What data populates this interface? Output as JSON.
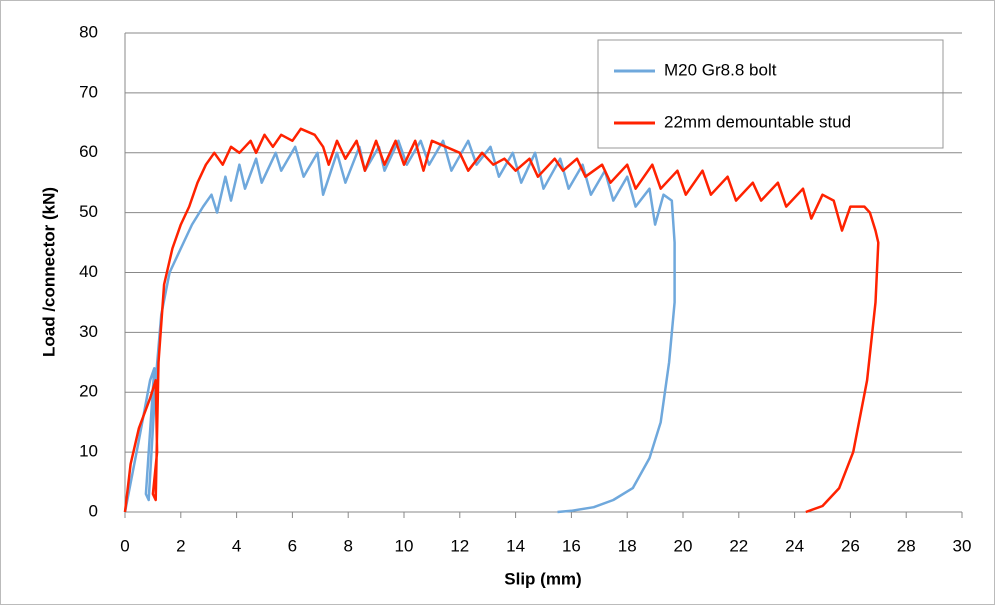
{
  "chart_data": {
    "type": "line",
    "xlabel": "Slip (mm)",
    "ylabel": "Load /connector (kN)",
    "xlim": [
      0,
      30
    ],
    "xticks": [
      0,
      2,
      4,
      6,
      8,
      10,
      12,
      14,
      16,
      18,
      20,
      22,
      24,
      26,
      28,
      30
    ],
    "ylim": [
      0,
      80
    ],
    "yticks": [
      0,
      10,
      20,
      30,
      40,
      50,
      60,
      70,
      80
    ],
    "grid": true,
    "legend": "upper right",
    "series": [
      {
        "name": "M20 Gr8.8 bolt",
        "color": "#6fa8dc",
        "x": [
          0,
          0.5,
          0.9,
          1.05,
          0.75,
          0.85,
          1.1,
          1.3,
          1.6,
          2.0,
          2.4,
          2.8,
          3.1,
          3.3,
          3.6,
          3.8,
          4.1,
          4.3,
          4.7,
          4.9,
          5.4,
          5.6,
          6.1,
          6.4,
          6.9,
          7.1,
          7.6,
          7.9,
          8.4,
          8.6,
          9.1,
          9.3,
          9.8,
          10.1,
          10.6,
          10.9,
          11.4,
          11.7,
          12.3,
          12.6,
          13.1,
          13.4,
          13.9,
          14.2,
          14.7,
          15.0,
          15.6,
          15.9,
          16.4,
          16.7,
          17.2,
          17.5,
          18.0,
          18.3,
          18.8,
          19.0,
          19.3,
          19.6,
          19.7,
          19.7,
          19.5,
          19.2,
          18.8,
          18.2,
          17.5,
          16.8,
          16.0,
          15.5
        ],
        "values": [
          0,
          12,
          22,
          24,
          3,
          2,
          22,
          33,
          40,
          44,
          48,
          51,
          53,
          50,
          56,
          52,
          58,
          54,
          59,
          55,
          60,
          57,
          61,
          56,
          60,
          53,
          60,
          55,
          61,
          57,
          61,
          57,
          62,
          58,
          62,
          58,
          62,
          57,
          62,
          58,
          61,
          56,
          60,
          55,
          60,
          54,
          59,
          54,
          58,
          53,
          57,
          52,
          56,
          51,
          54,
          48,
          53,
          52,
          45,
          35,
          25,
          15,
          9,
          4,
          2,
          0.8,
          0.2,
          0
        ]
      },
      {
        "name": "22mm demountable stud",
        "color": "#ff2200",
        "x": [
          0,
          0.2,
          0.5,
          0.9,
          1.1,
          1.15,
          1.0,
          1.1,
          1.2,
          1.4,
          1.7,
          2.0,
          2.3,
          2.6,
          2.9,
          3.2,
          3.5,
          3.8,
          4.1,
          4.5,
          4.7,
          5.0,
          5.3,
          5.6,
          6.0,
          6.3,
          6.8,
          7.1,
          7.3,
          7.6,
          7.9,
          8.3,
          8.6,
          9.0,
          9.3,
          9.7,
          10.0,
          10.4,
          10.7,
          11.0,
          11.5,
          12.0,
          12.3,
          12.8,
          13.2,
          13.6,
          14.0,
          14.5,
          14.8,
          15.4,
          15.7,
          16.2,
          16.5,
          17.1,
          17.4,
          18.0,
          18.3,
          18.9,
          19.2,
          19.8,
          20.1,
          20.7,
          21.0,
          21.6,
          21.9,
          22.5,
          22.8,
          23.4,
          23.7,
          24.3,
          24.6,
          25.0,
          25.4,
          25.7,
          26.0,
          26.5,
          26.7,
          26.9,
          27.0,
          26.9,
          26.6,
          26.1,
          25.6,
          25.0,
          24.4
        ],
        "values": [
          0,
          8,
          14,
          19,
          22,
          10,
          3,
          2,
          25,
          38,
          44,
          48,
          51,
          55,
          58,
          60,
          58,
          61,
          60,
          62,
          60,
          63,
          61,
          63,
          62,
          64,
          63,
          61,
          58,
          62,
          59,
          62,
          57,
          62,
          58,
          62,
          58,
          62,
          57,
          62,
          61,
          60,
          57,
          60,
          58,
          59,
          57,
          59,
          56,
          59,
          57,
          59,
          56,
          58,
          55,
          58,
          54,
          58,
          54,
          57,
          53,
          57,
          53,
          56,
          52,
          55,
          52,
          55,
          51,
          54,
          49,
          53,
          52,
          47,
          51,
          51,
          50,
          47,
          45,
          35,
          22,
          10,
          4,
          1,
          0
        ]
      }
    ]
  }
}
